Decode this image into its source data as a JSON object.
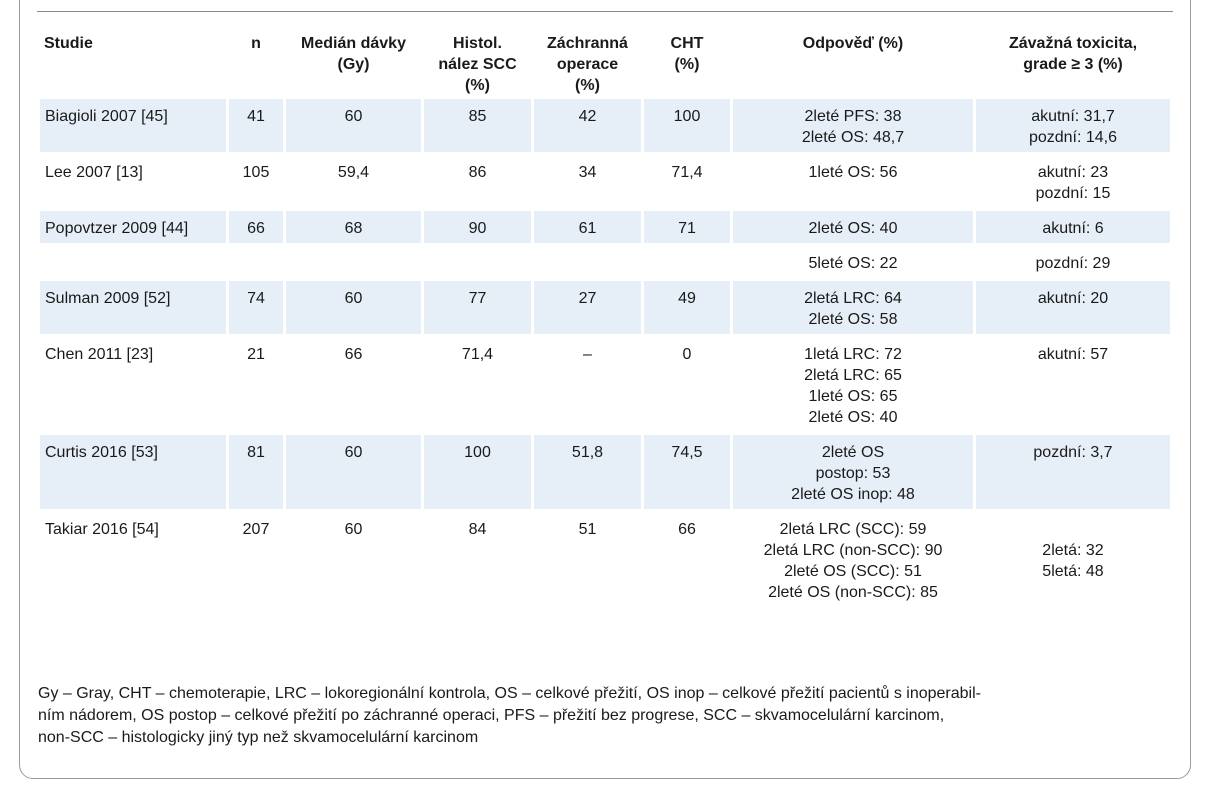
{
  "table": {
    "headers": [
      [
        "Studie"
      ],
      [
        "n"
      ],
      [
        "Medián dávky",
        "(Gy)"
      ],
      [
        "Histol.",
        "nález SCC",
        "(%)"
      ],
      [
        "Záchranná",
        "operace",
        "(%)"
      ],
      [
        "CHT",
        "(%)"
      ],
      [
        "Odpověď (%)"
      ],
      [
        "Závažná toxicita,",
        "grade ≥ 3 (%)"
      ]
    ],
    "rows": [
      {
        "shaded": true,
        "cells": [
          [
            "Biagioli 2007 [45]"
          ],
          [
            "41"
          ],
          [
            "60"
          ],
          [
            "85"
          ],
          [
            "42"
          ],
          [
            "100"
          ],
          [
            "2leté PFS: 38",
            "2leté OS: 48,7"
          ],
          [
            "akutní: 31,7",
            "pozdní: 14,6"
          ]
        ]
      },
      {
        "shaded": false,
        "cells": [
          [
            "Lee 2007 [13]"
          ],
          [
            "105"
          ],
          [
            "59,4"
          ],
          [
            "86"
          ],
          [
            "34"
          ],
          [
            "71,4"
          ],
          [
            "1leté OS: 56"
          ],
          [
            "akutní: 23",
            "pozdní: 15"
          ]
        ]
      },
      {
        "shaded": true,
        "cells": [
          [
            "Popovtzer 2009 [44]"
          ],
          [
            "66"
          ],
          [
            "68"
          ],
          [
            "90"
          ],
          [
            "61"
          ],
          [
            "71"
          ],
          [
            "2leté OS: 40"
          ],
          [
            "akutní: 6"
          ]
        ]
      },
      {
        "shaded": false,
        "cells": [
          [
            ""
          ],
          [
            ""
          ],
          [
            ""
          ],
          [
            ""
          ],
          [
            ""
          ],
          [
            ""
          ],
          [
            "5leté OS: 22"
          ],
          [
            "pozdní: 29"
          ]
        ]
      },
      {
        "shaded": true,
        "cells": [
          [
            "Sulman 2009 [52]"
          ],
          [
            "74"
          ],
          [
            "60"
          ],
          [
            "77"
          ],
          [
            "27"
          ],
          [
            "49"
          ],
          [
            "2letá LRC: 64",
            "2leté OS: 58"
          ],
          [
            "akutní: 20"
          ]
        ]
      },
      {
        "shaded": false,
        "cells": [
          [
            "Chen 2011 [23]"
          ],
          [
            "21"
          ],
          [
            "66"
          ],
          [
            "71,4"
          ],
          [
            "–"
          ],
          [
            "0"
          ],
          [
            "1letá LRC: 72",
            "2letá LRC: 65",
            "1leté OS: 65",
            "2leté OS: 40"
          ],
          [
            "akutní: 57"
          ]
        ]
      },
      {
        "shaded": true,
        "cells": [
          [
            "Curtis 2016 [53]"
          ],
          [
            "81"
          ],
          [
            "60"
          ],
          [
            "100"
          ],
          [
            "51,8"
          ],
          [
            "74,5"
          ],
          [
            "2leté OS",
            "postop: 53",
            "2leté OS inop: 48"
          ],
          [
            "pozdní: 3,7"
          ]
        ]
      },
      {
        "shaded": false,
        "cells": [
          [
            "Takiar 2016 [54]"
          ],
          [
            "207"
          ],
          [
            "60"
          ],
          [
            "84"
          ],
          [
            "51"
          ],
          [
            "66"
          ],
          [
            "2letá LRC (SCC): 59",
            "2letá LRC (non-SCC): 90",
            "2leté OS (SCC): 51",
            "2leté OS (non-SCC): 85"
          ],
          [
            "",
            "2letá: 32",
            "5letá: 48"
          ]
        ]
      }
    ]
  },
  "notes": [
    "Gy – Gray, CHT – chemoterapie, LRC – lokoregionální kontrola, OS – celkové přežití, OS inop – celkové přežití pacientů s inoperabil-",
    "ním nádorem, OS postop – celkové přežití po záchranné operaci, PFS – přežití bez progrese, SCC –  skvamocelulární karcinom,",
    "non-SCC  – histologicky jiný typ než skvamocelulární karcinom"
  ],
  "colors": {
    "row_shade": "#e6eef8",
    "border": "#9a9a9a"
  }
}
